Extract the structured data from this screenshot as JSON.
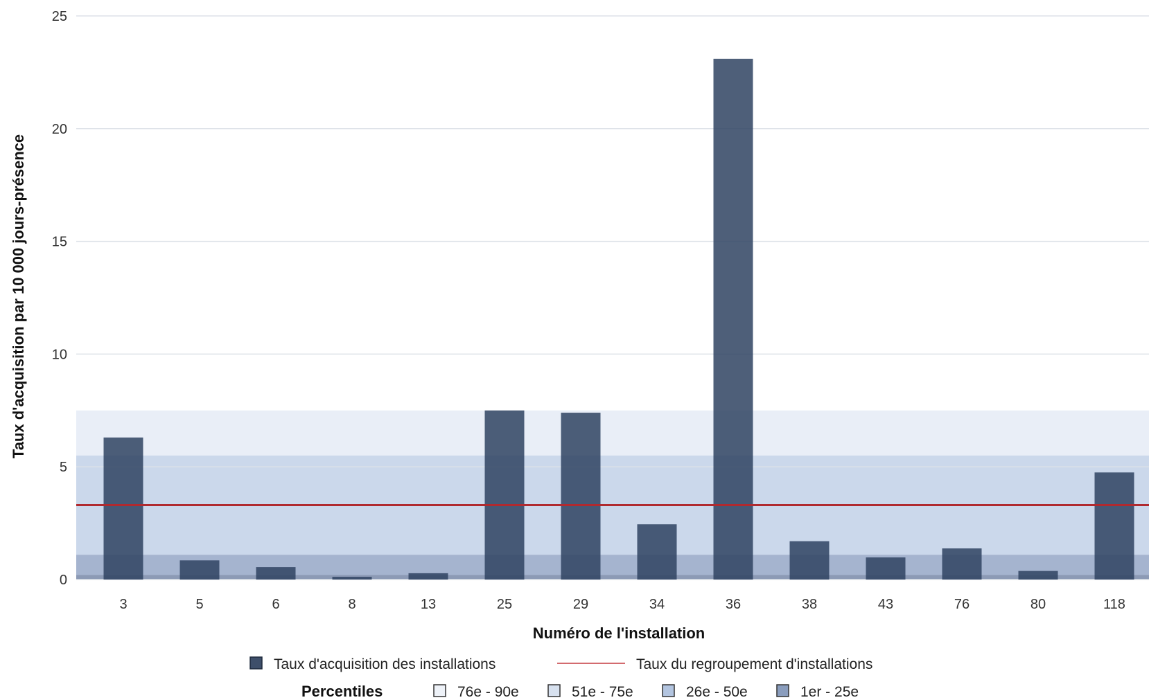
{
  "chart_data": {
    "type": "bar",
    "xlabel": "Numéro de l'installation",
    "ylabel": "Taux d'acquisition par 10 000 jours-présence",
    "ylim": [
      0,
      25
    ],
    "yticks": [
      0,
      5,
      10,
      15,
      20,
      25
    ],
    "grid": true,
    "categories": [
      "3",
      "5",
      "6",
      "8",
      "13",
      "25",
      "29",
      "34",
      "36",
      "38",
      "43",
      "76",
      "80",
      "118"
    ],
    "series": [
      {
        "name": "Taux d'acquisition des installations",
        "color": "#2f4361",
        "values": [
          6.3,
          0.85,
          0.55,
          0.12,
          0.28,
          7.5,
          7.4,
          2.45,
          23.1,
          1.7,
          0.98,
          1.38,
          0.38,
          4.75
        ]
      }
    ],
    "reference_line": {
      "name": "Taux  du regroupement d'installations",
      "value": 3.3,
      "color": "#b02a2f"
    },
    "percentile_bands": {
      "title": "Percentiles",
      "bands": [
        {
          "label": "1er - 25e",
          "from": 0,
          "to": 1.1,
          "color": "#8a9dbd"
        },
        {
          "label": "26e - 50e",
          "from": 1.1,
          "to": 5.5,
          "color": "#b3c5e0"
        },
        {
          "label": "51e - 75e",
          "from": 5.5,
          "to": 7.5,
          "color": "#d7e1ef"
        },
        {
          "label": "76e - 90e",
          "from": 7.5,
          "to": 7.5,
          "color": "#eef2f8"
        }
      ]
    },
    "legend_placement": "bottom"
  }
}
